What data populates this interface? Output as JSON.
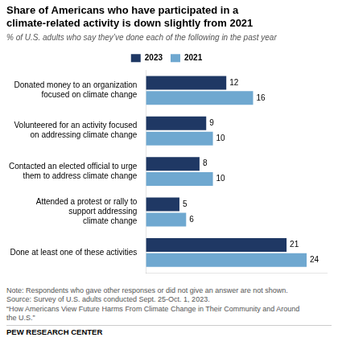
{
  "chart_data": {
    "type": "bar",
    "orientation": "horizontal",
    "title": "Share of Americans who have participated in a\nclimate-related activity is down slightly from 2021",
    "subtitle": "% of U.S. adults who say they’ve done each of the following in the past year",
    "categories": [
      "Donated money to an organization\nfocused on climate change",
      "Volunteered for an activity focused\non addressing climate change",
      "Contacted an elected official to urge\nthem to address climate change",
      "Attended a protest or rally to\nsupport addressing\nclimate change",
      "Done at least one of these activities"
    ],
    "series": [
      {
        "name": "2023",
        "color": "#1f3864",
        "values": [
          12,
          9,
          8,
          5,
          21
        ]
      },
      {
        "name": "2021",
        "color": "#6fa8d0",
        "values": [
          16,
          10,
          10,
          6,
          24
        ]
      }
    ],
    "xlim": [
      0,
      27
    ],
    "data_labels": true,
    "tick_labels": "y",
    "grid": false,
    "legend": "top",
    "annotations": [
      "Note: Respondents who gave other responses or did not give an answer are not shown.",
      "Source: Survey of U.S. adults conducted Sept. 25-Oct. 1, 2023.",
      "“How Americans View Future Harms From Climate Change in Their Community and Around",
      "the U.S.”",
      "PEW RESEARCH CENTER"
    ]
  }
}
